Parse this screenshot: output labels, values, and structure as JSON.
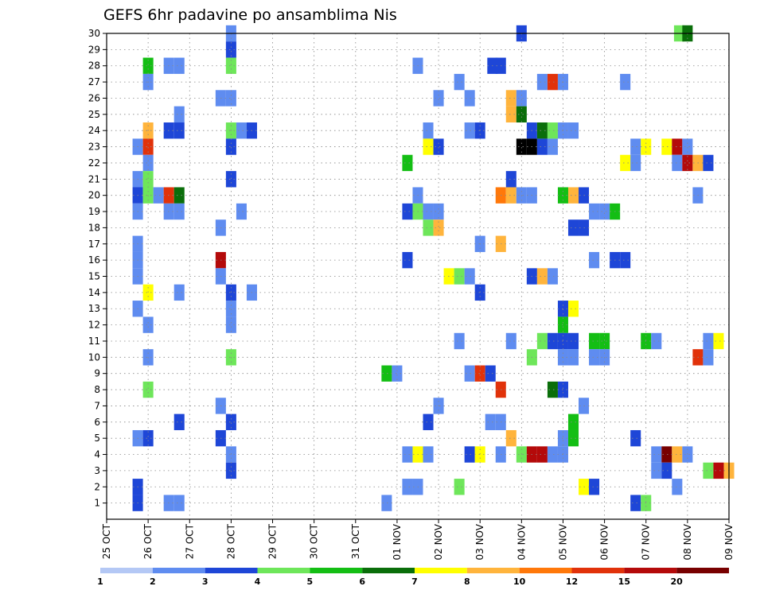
{
  "chart_data": {
    "type": "heatmap",
    "title": "GEFS 6hr padavine po ansamblima Nis",
    "x_ticks": [
      "25 OCT",
      "26 OCT",
      "27 OCT",
      "28 OCT",
      "29 OCT",
      "30 OCT",
      "31 OCT",
      "01 NOV",
      "02 NOV",
      "03 NOV",
      "04 NOV",
      "05 NOV",
      "06 NOV",
      "07 NOV",
      "08 NOV",
      "09 NOV"
    ],
    "y_ticks": [
      "1",
      "2",
      "3",
      "4",
      "5",
      "6",
      "7",
      "8",
      "9",
      "10",
      "11",
      "12",
      "13",
      "14",
      "15",
      "16",
      "17",
      "18",
      "19",
      "20",
      "21",
      "22",
      "23",
      "24",
      "25",
      "26",
      "27",
      "28",
      "29",
      "30"
    ],
    "x_range_days": [
      0,
      15
    ],
    "y_range": [
      0,
      30
    ],
    "grid": true,
    "colorbar": {
      "labels": [
        "1",
        "2",
        "3",
        "4",
        "5",
        "6",
        "7",
        "8",
        "10",
        "12",
        "15",
        "20"
      ],
      "colors": [
        "#b4c8f5",
        "#5f8cf0",
        "#1e46d7",
        "#6ee65a",
        "#14be14",
        "#0a6e0a",
        "#ffff00",
        "#ffb43c",
        "#ff780a",
        "#e1320a",
        "#b40a0a",
        "#780000"
      ]
    },
    "cells": [
      [
        3,
        30,
        1
      ],
      [
        10,
        30,
        2
      ],
      [
        13.8,
        30,
        3
      ],
      [
        14,
        30,
        5
      ],
      [
        3,
        29,
        2
      ],
      [
        1,
        28,
        4
      ],
      [
        1.5,
        28,
        1
      ],
      [
        1.75,
        28,
        1
      ],
      [
        3,
        28,
        3
      ],
      [
        7.5,
        28,
        1
      ],
      [
        9.3,
        28,
        2
      ],
      [
        9.5,
        28,
        2
      ],
      [
        1,
        27,
        1
      ],
      [
        8.5,
        27,
        1
      ],
      [
        10.5,
        27,
        1
      ],
      [
        10.75,
        27,
        9
      ],
      [
        11,
        27,
        1
      ],
      [
        12.5,
        27,
        1
      ],
      [
        2.75,
        26,
        1
      ],
      [
        3,
        26,
        1
      ],
      [
        8,
        26,
        1
      ],
      [
        8.75,
        26,
        1
      ],
      [
        9.75,
        26,
        7
      ],
      [
        10,
        26,
        1
      ],
      [
        1.75,
        25,
        1
      ],
      [
        9.75,
        25,
        7
      ],
      [
        10,
        25,
        5
      ],
      [
        1,
        24,
        7
      ],
      [
        1.5,
        24,
        2
      ],
      [
        1.75,
        24,
        2
      ],
      [
        3,
        24,
        3
      ],
      [
        3.25,
        24,
        1
      ],
      [
        3.5,
        24,
        2
      ],
      [
        7.75,
        24,
        1
      ],
      [
        8.75,
        24,
        1
      ],
      [
        9,
        24,
        2
      ],
      [
        10.25,
        24,
        2
      ],
      [
        10.5,
        24,
        5
      ],
      [
        10.75,
        24,
        3
      ],
      [
        11,
        24,
        1
      ],
      [
        11.25,
        24,
        1
      ],
      [
        0.75,
        23,
        1
      ],
      [
        1,
        23,
        9
      ],
      [
        3,
        23,
        2
      ],
      [
        7.75,
        23,
        6
      ],
      [
        8,
        23,
        2
      ],
      [
        10,
        23,
        12
      ],
      [
        10.25,
        23,
        12
      ],
      [
        10.5,
        23,
        2
      ],
      [
        10.75,
        23,
        1
      ],
      [
        12.75,
        23,
        1
      ],
      [
        13,
        23,
        6
      ],
      [
        13.5,
        23,
        6
      ],
      [
        13.75,
        23,
        10
      ],
      [
        14,
        23,
        1
      ],
      [
        1,
        22,
        1
      ],
      [
        7.25,
        22,
        4
      ],
      [
        12.5,
        22,
        6
      ],
      [
        12.75,
        22,
        1
      ],
      [
        13.75,
        22,
        1
      ],
      [
        14,
        22,
        10
      ],
      [
        14.25,
        22,
        7
      ],
      [
        14.5,
        22,
        2
      ],
      [
        0.75,
        21,
        1
      ],
      [
        1,
        21,
        3
      ],
      [
        3,
        21,
        2
      ],
      [
        9.75,
        21,
        2
      ],
      [
        0.75,
        20,
        2
      ],
      [
        1,
        20,
        3
      ],
      [
        1.25,
        20,
        1
      ],
      [
        1.5,
        20,
        9
      ],
      [
        1.75,
        20,
        5
      ],
      [
        7.5,
        20,
        1
      ],
      [
        9.5,
        20,
        8
      ],
      [
        9.75,
        20,
        7
      ],
      [
        10,
        20,
        1
      ],
      [
        10.25,
        20,
        1
      ],
      [
        11,
        20,
        4
      ],
      [
        11.25,
        20,
        7
      ],
      [
        11.5,
        20,
        2
      ],
      [
        14.25,
        20,
        1
      ],
      [
        0.75,
        19,
        1
      ],
      [
        1.5,
        19,
        1
      ],
      [
        1.75,
        19,
        1
      ],
      [
        3.25,
        19,
        1
      ],
      [
        7.25,
        19,
        2
      ],
      [
        7.5,
        19,
        3
      ],
      [
        7.75,
        19,
        1
      ],
      [
        8,
        19,
        1
      ],
      [
        11.75,
        19,
        1
      ],
      [
        12,
        19,
        1
      ],
      [
        12.25,
        19,
        4
      ],
      [
        2.75,
        18,
        1
      ],
      [
        7.75,
        18,
        3
      ],
      [
        8,
        18,
        7
      ],
      [
        11.25,
        18,
        2
      ],
      [
        11.5,
        18,
        2
      ],
      [
        0.75,
        17,
        1
      ],
      [
        9,
        17,
        1
      ],
      [
        9.5,
        17,
        7
      ],
      [
        0.75,
        16,
        1
      ],
      [
        2.75,
        16,
        10
      ],
      [
        7.25,
        16,
        2
      ],
      [
        11.75,
        16,
        1
      ],
      [
        12.25,
        16,
        2
      ],
      [
        12.5,
        16,
        2
      ],
      [
        0.75,
        15,
        1
      ],
      [
        2.75,
        15,
        1
      ],
      [
        8.25,
        15,
        6
      ],
      [
        8.5,
        15,
        3
      ],
      [
        8.75,
        15,
        1
      ],
      [
        10.25,
        15,
        2
      ],
      [
        10.5,
        15,
        7
      ],
      [
        10.75,
        15,
        1
      ],
      [
        1,
        14,
        6
      ],
      [
        1.75,
        14,
        1
      ],
      [
        3,
        14,
        2
      ],
      [
        3.5,
        14,
        1
      ],
      [
        9,
        14,
        2
      ],
      [
        0.75,
        13,
        1
      ],
      [
        3,
        13,
        1
      ],
      [
        11,
        13,
        2
      ],
      [
        11.25,
        13,
        6
      ],
      [
        1,
        12,
        1
      ],
      [
        3,
        12,
        1
      ],
      [
        11,
        12,
        4
      ],
      [
        8.5,
        11,
        1
      ],
      [
        9.75,
        11,
        1
      ],
      [
        10.5,
        11,
        3
      ],
      [
        10.75,
        11,
        2
      ],
      [
        11,
        11,
        2
      ],
      [
        11.25,
        11,
        2
      ],
      [
        11.75,
        11,
        4
      ],
      [
        12,
        11,
        4
      ],
      [
        13,
        11,
        4
      ],
      [
        13.25,
        11,
        1
      ],
      [
        14.5,
        11,
        1
      ],
      [
        14.75,
        11,
        6
      ],
      [
        1,
        10,
        1
      ],
      [
        3,
        10,
        3
      ],
      [
        10.25,
        10,
        3
      ],
      [
        11,
        10,
        1
      ],
      [
        11.25,
        10,
        1
      ],
      [
        11.75,
        10,
        1
      ],
      [
        12,
        10,
        1
      ],
      [
        14.25,
        10,
        9
      ],
      [
        14.5,
        10,
        1
      ],
      [
        6.75,
        9,
        4
      ],
      [
        7,
        9,
        1
      ],
      [
        8.75,
        9,
        1
      ],
      [
        9,
        9,
        9
      ],
      [
        9.25,
        9,
        2
      ],
      [
        1,
        8,
        3
      ],
      [
        9.5,
        8,
        9
      ],
      [
        10.75,
        8,
        5
      ],
      [
        11,
        8,
        2
      ],
      [
        2.75,
        7,
        1
      ],
      [
        8,
        7,
        1
      ],
      [
        11.5,
        7,
        1
      ],
      [
        1.75,
        6,
        2
      ],
      [
        3,
        6,
        2
      ],
      [
        7.75,
        6,
        2
      ],
      [
        9.25,
        6,
        1
      ],
      [
        9.5,
        6,
        1
      ],
      [
        11.25,
        6,
        4
      ],
      [
        0.75,
        5,
        1
      ],
      [
        1,
        5,
        2
      ],
      [
        2.75,
        5,
        2
      ],
      [
        9.75,
        5,
        7
      ],
      [
        11,
        5,
        1
      ],
      [
        11.25,
        5,
        4
      ],
      [
        12.75,
        5,
        2
      ],
      [
        3,
        4,
        1
      ],
      [
        7.25,
        4,
        1
      ],
      [
        7.5,
        4,
        6
      ],
      [
        7.75,
        4,
        1
      ],
      [
        8.75,
        4,
        2
      ],
      [
        9,
        4,
        6
      ],
      [
        9.5,
        4,
        1
      ],
      [
        10,
        4,
        3
      ],
      [
        10.25,
        4,
        10
      ],
      [
        10.5,
        4,
        10
      ],
      [
        10.75,
        4,
        1
      ],
      [
        11,
        4,
        1
      ],
      [
        13.25,
        4,
        1
      ],
      [
        13.5,
        4,
        11
      ],
      [
        13.75,
        4,
        7
      ],
      [
        14,
        4,
        1
      ],
      [
        3,
        3,
        2
      ],
      [
        13.25,
        3,
        1
      ],
      [
        13.5,
        3,
        2
      ],
      [
        14.5,
        3,
        3
      ],
      [
        14.75,
        3,
        10
      ],
      [
        15,
        3,
        7
      ],
      [
        0.75,
        2,
        2
      ],
      [
        7.25,
        2,
        1
      ],
      [
        7.5,
        2,
        1
      ],
      [
        8.5,
        2,
        3
      ],
      [
        11.5,
        2,
        6
      ],
      [
        11.75,
        2,
        2
      ],
      [
        13.75,
        2,
        1
      ],
      [
        0.75,
        1,
        2
      ],
      [
        1.5,
        1,
        1
      ],
      [
        1.75,
        1,
        1
      ],
      [
        6.75,
        1,
        1
      ],
      [
        12.75,
        1,
        2
      ],
      [
        13,
        1,
        3
      ]
    ]
  }
}
